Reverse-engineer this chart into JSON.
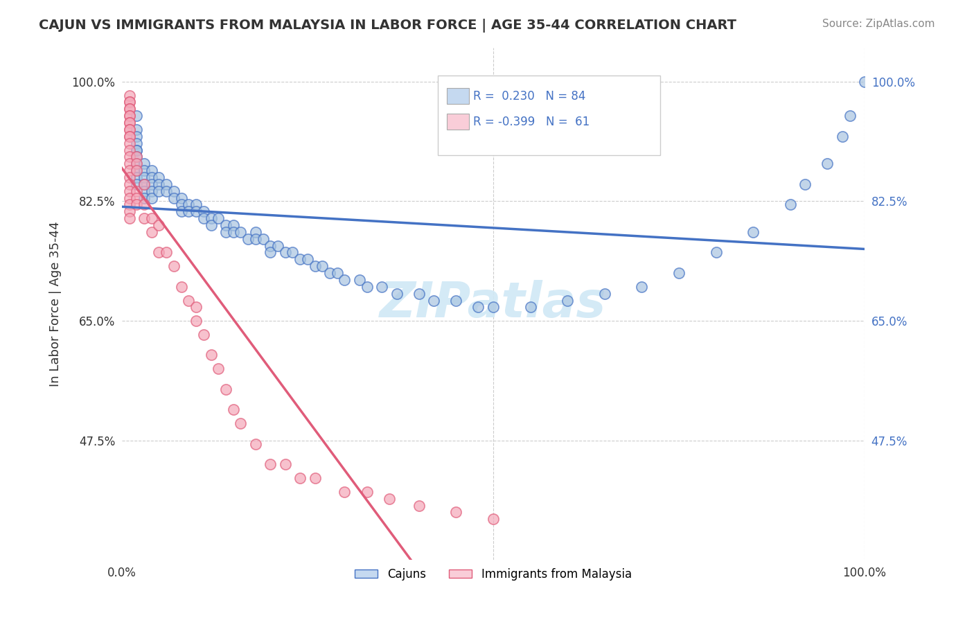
{
  "title": "CAJUN VS IMMIGRANTS FROM MALAYSIA IN LABOR FORCE | AGE 35-44 CORRELATION CHART",
  "source": "Source: ZipAtlas.com",
  "xlabel": "",
  "ylabel": "In Labor Force | Age 35-44",
  "xlim": [
    0.0,
    1.0
  ],
  "ylim": [
    0.3,
    1.05
  ],
  "ytick_labels": [
    "47.5%",
    "65.0%",
    "82.5%",
    "100.0%"
  ],
  "ytick_values": [
    0.475,
    0.65,
    0.825,
    1.0
  ],
  "xtick_labels": [
    "0.0%",
    "100.0%"
  ],
  "xtick_values": [
    0.0,
    1.0
  ],
  "cajun_R": 0.23,
  "cajun_N": 84,
  "malaysia_R": -0.399,
  "malaysia_N": 61,
  "cajun_color": "#a8c4e0",
  "malaysia_color": "#f4a7b9",
  "cajun_line_color": "#4472c4",
  "malaysia_line_color": "#e05c7a",
  "cajun_legend_color": "#c5d9f0",
  "malaysia_legend_color": "#f9cdd8",
  "watermark": "ZIPatlas",
  "watermark_color": "#d0e8f5",
  "cajun_scatter_x": [
    0.02,
    0.02,
    0.02,
    0.02,
    0.02,
    0.02,
    0.02,
    0.02,
    0.02,
    0.02,
    0.02,
    0.03,
    0.03,
    0.03,
    0.03,
    0.03,
    0.03,
    0.04,
    0.04,
    0.04,
    0.04,
    0.04,
    0.05,
    0.05,
    0.05,
    0.06,
    0.06,
    0.07,
    0.07,
    0.08,
    0.08,
    0.08,
    0.09,
    0.09,
    0.1,
    0.1,
    0.11,
    0.11,
    0.12,
    0.12,
    0.13,
    0.14,
    0.14,
    0.15,
    0.15,
    0.16,
    0.17,
    0.18,
    0.18,
    0.19,
    0.2,
    0.2,
    0.21,
    0.22,
    0.23,
    0.24,
    0.25,
    0.26,
    0.27,
    0.28,
    0.29,
    0.3,
    0.32,
    0.33,
    0.35,
    0.37,
    0.4,
    0.42,
    0.45,
    0.48,
    0.5,
    0.55,
    0.6,
    0.65,
    0.7,
    0.75,
    0.8,
    0.85,
    0.9,
    0.92,
    0.95,
    0.97,
    0.98,
    1.0
  ],
  "cajun_scatter_y": [
    0.95,
    0.93,
    0.92,
    0.91,
    0.9,
    0.9,
    0.89,
    0.88,
    0.87,
    0.86,
    0.85,
    0.88,
    0.87,
    0.86,
    0.85,
    0.84,
    0.83,
    0.87,
    0.86,
    0.85,
    0.84,
    0.83,
    0.86,
    0.85,
    0.84,
    0.85,
    0.84,
    0.84,
    0.83,
    0.83,
    0.82,
    0.81,
    0.82,
    0.81,
    0.82,
    0.81,
    0.81,
    0.8,
    0.8,
    0.79,
    0.8,
    0.79,
    0.78,
    0.79,
    0.78,
    0.78,
    0.77,
    0.78,
    0.77,
    0.77,
    0.76,
    0.75,
    0.76,
    0.75,
    0.75,
    0.74,
    0.74,
    0.73,
    0.73,
    0.72,
    0.72,
    0.71,
    0.71,
    0.7,
    0.7,
    0.69,
    0.69,
    0.68,
    0.68,
    0.67,
    0.67,
    0.67,
    0.68,
    0.69,
    0.7,
    0.72,
    0.75,
    0.78,
    0.82,
    0.85,
    0.88,
    0.92,
    0.95,
    1.0
  ],
  "malaysia_scatter_x": [
    0.01,
    0.01,
    0.01,
    0.01,
    0.01,
    0.01,
    0.01,
    0.01,
    0.01,
    0.01,
    0.01,
    0.01,
    0.01,
    0.01,
    0.01,
    0.01,
    0.01,
    0.01,
    0.01,
    0.01,
    0.01,
    0.01,
    0.01,
    0.01,
    0.01,
    0.02,
    0.02,
    0.02,
    0.02,
    0.02,
    0.02,
    0.03,
    0.03,
    0.03,
    0.04,
    0.04,
    0.05,
    0.05,
    0.06,
    0.07,
    0.08,
    0.09,
    0.1,
    0.1,
    0.11,
    0.12,
    0.13,
    0.14,
    0.15,
    0.16,
    0.18,
    0.2,
    0.22,
    0.24,
    0.26,
    0.3,
    0.33,
    0.36,
    0.4,
    0.45,
    0.5
  ],
  "malaysia_scatter_y": [
    0.98,
    0.97,
    0.97,
    0.96,
    0.96,
    0.95,
    0.95,
    0.94,
    0.94,
    0.93,
    0.93,
    0.92,
    0.92,
    0.91,
    0.9,
    0.89,
    0.88,
    0.87,
    0.86,
    0.85,
    0.84,
    0.83,
    0.82,
    0.81,
    0.8,
    0.89,
    0.88,
    0.87,
    0.84,
    0.83,
    0.82,
    0.85,
    0.82,
    0.8,
    0.8,
    0.78,
    0.79,
    0.75,
    0.75,
    0.73,
    0.7,
    0.68,
    0.67,
    0.65,
    0.63,
    0.6,
    0.58,
    0.55,
    0.52,
    0.5,
    0.47,
    0.44,
    0.44,
    0.42,
    0.42,
    0.4,
    0.4,
    0.39,
    0.38,
    0.37,
    0.36
  ]
}
